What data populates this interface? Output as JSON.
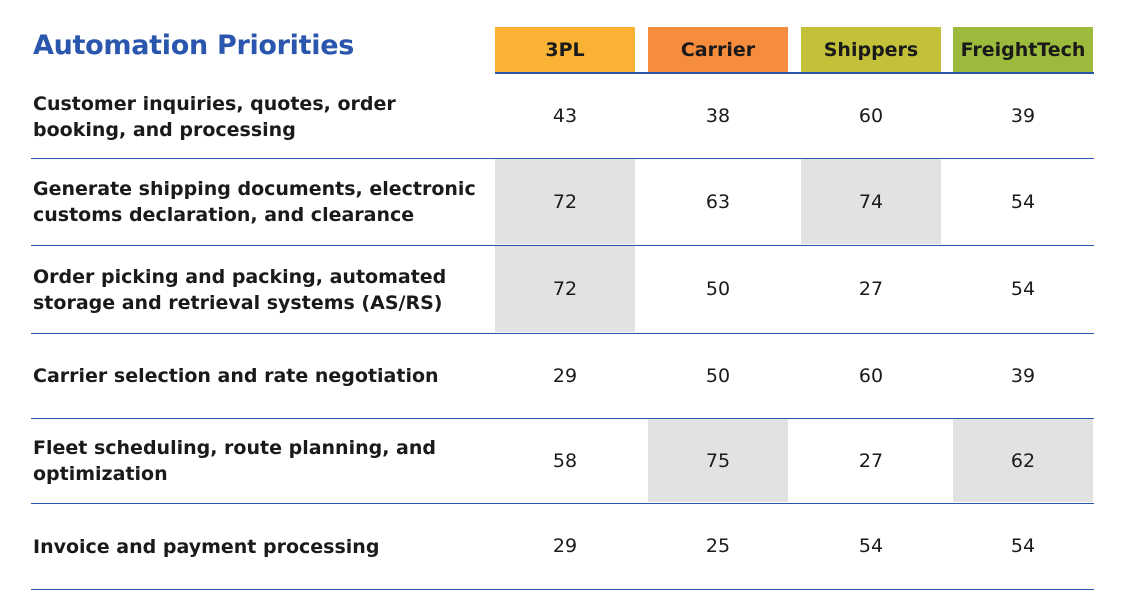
{
  "chart_data": {
    "type": "table",
    "title": "Automation Priorities",
    "columns": [
      {
        "label": "3PL",
        "color": "#f9b233"
      },
      {
        "label": "Carrier",
        "color": "#f68c3e"
      },
      {
        "label": "Shippers",
        "color": "#c3c13a"
      },
      {
        "label": "FreightTech",
        "color": "#9cbb3c"
      }
    ],
    "highlight_color": "#e2e2e2",
    "rule_color": "#2a57ad",
    "rows": [
      {
        "label": "Customer inquiries, quotes, order booking, and processing",
        "values": [
          43,
          38,
          60,
          39
        ],
        "highlighted": [
          false,
          false,
          false,
          false
        ]
      },
      {
        "label": "Generate shipping documents, electronic customs declaration, and clearance",
        "values": [
          72,
          63,
          74,
          54
        ],
        "highlighted": [
          true,
          false,
          true,
          false
        ]
      },
      {
        "label": "Order picking and packing, automated storage and retrieval systems (AS/RS)",
        "values": [
          72,
          50,
          27,
          54
        ],
        "highlighted": [
          true,
          false,
          false,
          false
        ]
      },
      {
        "label": "Carrier selection and rate negotiation",
        "values": [
          29,
          50,
          60,
          39
        ],
        "highlighted": [
          false,
          false,
          false,
          false
        ]
      },
      {
        "label": "Fleet scheduling, route planning, and optimization",
        "values": [
          58,
          75,
          27,
          62
        ],
        "highlighted": [
          false,
          true,
          false,
          true
        ]
      },
      {
        "label": "Invoice and payment processing",
        "values": [
          29,
          25,
          54,
          54
        ],
        "highlighted": [
          false,
          false,
          false,
          false
        ]
      }
    ]
  }
}
